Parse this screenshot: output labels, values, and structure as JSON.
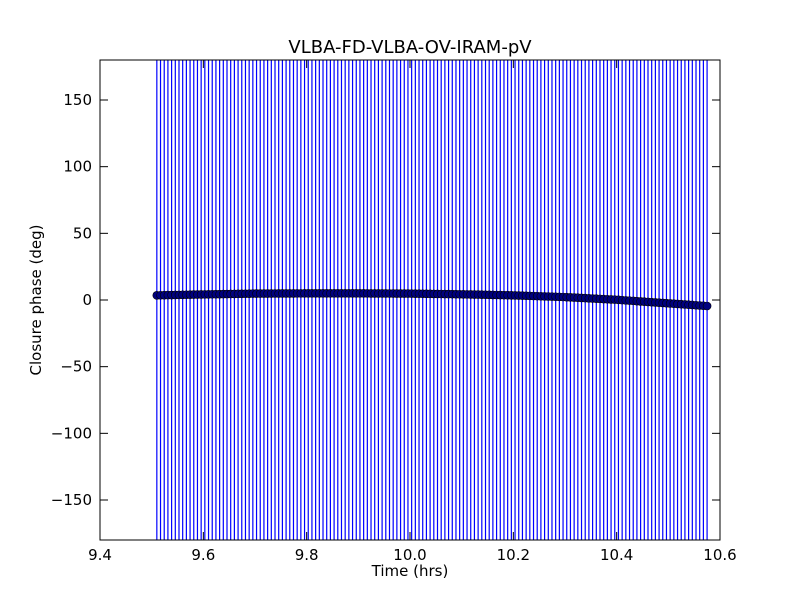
{
  "chart_data": {
    "type": "scatter",
    "title": "VLBA-FD-VLBA-OV-IRAM-pV",
    "xlabel": "Time (hrs)",
    "ylabel": "Closure phase (deg)",
    "xlim": [
      9.4,
      10.6
    ],
    "ylim": [
      -180,
      180
    ],
    "x_ticks": [
      9.4,
      9.6,
      9.8,
      10.0,
      10.2,
      10.4,
      10.6
    ],
    "x_tick_labels": [
      "9.4",
      "9.6",
      "9.8",
      "10.0",
      "10.2",
      "10.4",
      "10.6"
    ],
    "y_ticks": [
      150,
      100,
      50,
      0,
      -50,
      -100,
      -150
    ],
    "y_tick_labels": [
      "150",
      "100",
      "50",
      "0",
      "−50",
      "−100",
      "−150"
    ],
    "grid": false,
    "error_bars": "full-range",
    "error_bar_color": "#0000ff",
    "marker_color": "#00007f",
    "series": [
      {
        "time_start": 9.51,
        "time_end": 10.575,
        "n_points": 150,
        "phase": [
          {
            "x": 9.51,
            "y": 3.5
          },
          {
            "x": 9.6,
            "y": 4.2
          },
          {
            "x": 9.7,
            "y": 4.8
          },
          {
            "x": 9.8,
            "y": 5.0
          },
          {
            "x": 9.9,
            "y": 5.0
          },
          {
            "x": 10.0,
            "y": 4.8
          },
          {
            "x": 10.1,
            "y": 4.3
          },
          {
            "x": 10.2,
            "y": 3.5
          },
          {
            "x": 10.3,
            "y": 2.2
          },
          {
            "x": 10.4,
            "y": 0.2
          },
          {
            "x": 10.5,
            "y": -2.5
          },
          {
            "x": 10.575,
            "y": -4.5
          }
        ]
      }
    ]
  }
}
